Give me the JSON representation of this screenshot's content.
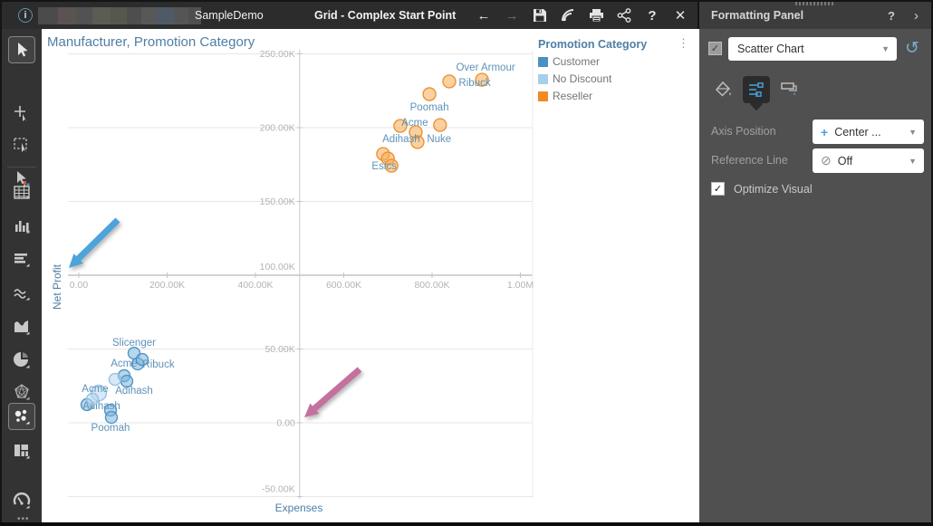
{
  "topbar": {
    "workspace_label": "SampleDemo",
    "title": "Grid - Complex Start Point"
  },
  "icons": {
    "info": "i",
    "back": "←",
    "forward": "→",
    "help": "?",
    "close": "✕",
    "panel_help": "?",
    "panel_collapse": "›",
    "menu_dots": "⋮",
    "dropdown_chevron": "▼",
    "reset": "↺",
    "check": "✓",
    "plus": "+",
    "off": "⊘"
  },
  "legend": {
    "title": "Promotion Category",
    "items": [
      {
        "label": "Customer",
        "color": "#4a90c2"
      },
      {
        "label": "No Discount",
        "color": "#a8cfea"
      },
      {
        "label": "Reseller",
        "color": "#f18a21"
      }
    ]
  },
  "formatting_panel": {
    "title": "Formatting Panel",
    "chart_type": {
      "checked": true,
      "value": "Scatter Chart"
    },
    "axis_position": {
      "label": "Axis Position",
      "value": "Center ..."
    },
    "reference_line": {
      "label": "Reference Line",
      "value": "Off"
    },
    "optimize_visual": {
      "label": "Optimize Visual",
      "checked": true
    }
  },
  "chart_data": {
    "type": "scatter",
    "title": "Manufacturer, Promotion Category",
    "xlabel": "Expenses",
    "ylabel": "Net Profit",
    "xlim": [
      0,
      1052000
    ],
    "ylim": [
      -57500,
      252500
    ],
    "axis_position": "center",
    "axis_cross_x": 500000,
    "axis_cross_y": 100000,
    "grid": true,
    "legend_title": "Promotion Category",
    "x_ticks": [
      {
        "v": 0,
        "label": "0.00"
      },
      {
        "v": 200000,
        "label": "200.00K"
      },
      {
        "v": 400000,
        "label": "400.00K"
      },
      {
        "v": 600000,
        "label": "600.00K"
      },
      {
        "v": 800000,
        "label": "800.00K"
      },
      {
        "v": 1000000,
        "label": "1.00M"
      }
    ],
    "y_ticks": [
      {
        "v": 250000,
        "label": "250.00K"
      },
      {
        "v": 200000,
        "label": "200.00K"
      },
      {
        "v": 150000,
        "label": "150.00K"
      },
      {
        "v": 100000,
        "label": "100.00K"
      },
      {
        "v": 50000,
        "label": "50.00K"
      },
      {
        "v": 0,
        "label": "0.00"
      },
      {
        "v": -50000,
        "label": "-50.00K"
      }
    ],
    "series": [
      {
        "name": "Customer",
        "stroke": "#4a90c2",
        "fill": "#7ab4dc",
        "r": 6.5,
        "points": [
          {
            "x": 125100,
            "y": 47200,
            "label": "Slicenger",
            "dx": 0,
            "dy": -12
          },
          {
            "x": 133300,
            "y": 39900,
            "label": "Acme",
            "dx": -15,
            "dy": -1
          },
          {
            "x": 143600,
            "y": 42900,
            "label": "Ribuck",
            "dx": 18,
            "dy": 5
          },
          {
            "x": 102600,
            "y": 31900
          },
          {
            "x": 108700,
            "y": 28200,
            "label": "Adihash",
            "dx": 8,
            "dy": 10
          },
          {
            "x": 18500,
            "y": 12300,
            "label": "Adihash",
            "dx": 16,
            "dy": 1
          },
          {
            "x": 71800,
            "y": 8600
          },
          {
            "x": 73800,
            "y": 3700,
            "label": "Poomah",
            "dx": -1,
            "dy": 11
          }
        ]
      },
      {
        "name": "No Discount",
        "stroke": "#8fc0e2",
        "fill": "#b5d7ee",
        "r": 6.5,
        "points": [
          {
            "x": 82000,
            "y": 29400
          },
          {
            "x": 45100,
            "y": 20200,
            "r": 8.5,
            "label": "Acme",
            "dx": -4,
            "dy": -5
          },
          {
            "x": 30800,
            "y": 16000
          }
        ]
      },
      {
        "name": "Reseller",
        "stroke": "#ee8d2a",
        "fill": "#f6ab53",
        "r": 7,
        "points": [
          {
            "x": 913000,
            "y": 232500,
            "label": "Over Armour",
            "dx": 4,
            "dy": -14
          },
          {
            "x": 839000,
            "y": 231300,
            "label": "Ribuck",
            "dx": 28,
            "dy": 1
          },
          {
            "x": 794000,
            "y": 222700,
            "label": "Poomah",
            "dx": 0,
            "dy": 14
          },
          {
            "x": 728000,
            "y": 201200,
            "label": "Acme",
            "dx": 16,
            "dy": -4
          },
          {
            "x": 763000,
            "y": 197000
          },
          {
            "x": 818000,
            "y": 201800,
            "label": "Nuke",
            "dx": -1,
            "dy": 15
          },
          {
            "x": 767000,
            "y": 190200,
            "label": "Adihash",
            "dx": -18,
            "dy": -4
          },
          {
            "x": 689000,
            "y": 182200
          },
          {
            "x": 700000,
            "y": 179100
          },
          {
            "x": 708000,
            "y": 174200,
            "label": "Esics",
            "dx": -8,
            "dy": 0
          }
        ]
      }
    ],
    "annotations": [
      {
        "name": "blue-arrow",
        "color": "#4da3dc",
        "x1": 84,
        "y1": 211,
        "x2": 30,
        "y2": 264
      },
      {
        "name": "pink-arrow",
        "color": "#c4719e",
        "x1": 351,
        "y1": 376,
        "x2": 290,
        "y2": 429
      }
    ]
  }
}
